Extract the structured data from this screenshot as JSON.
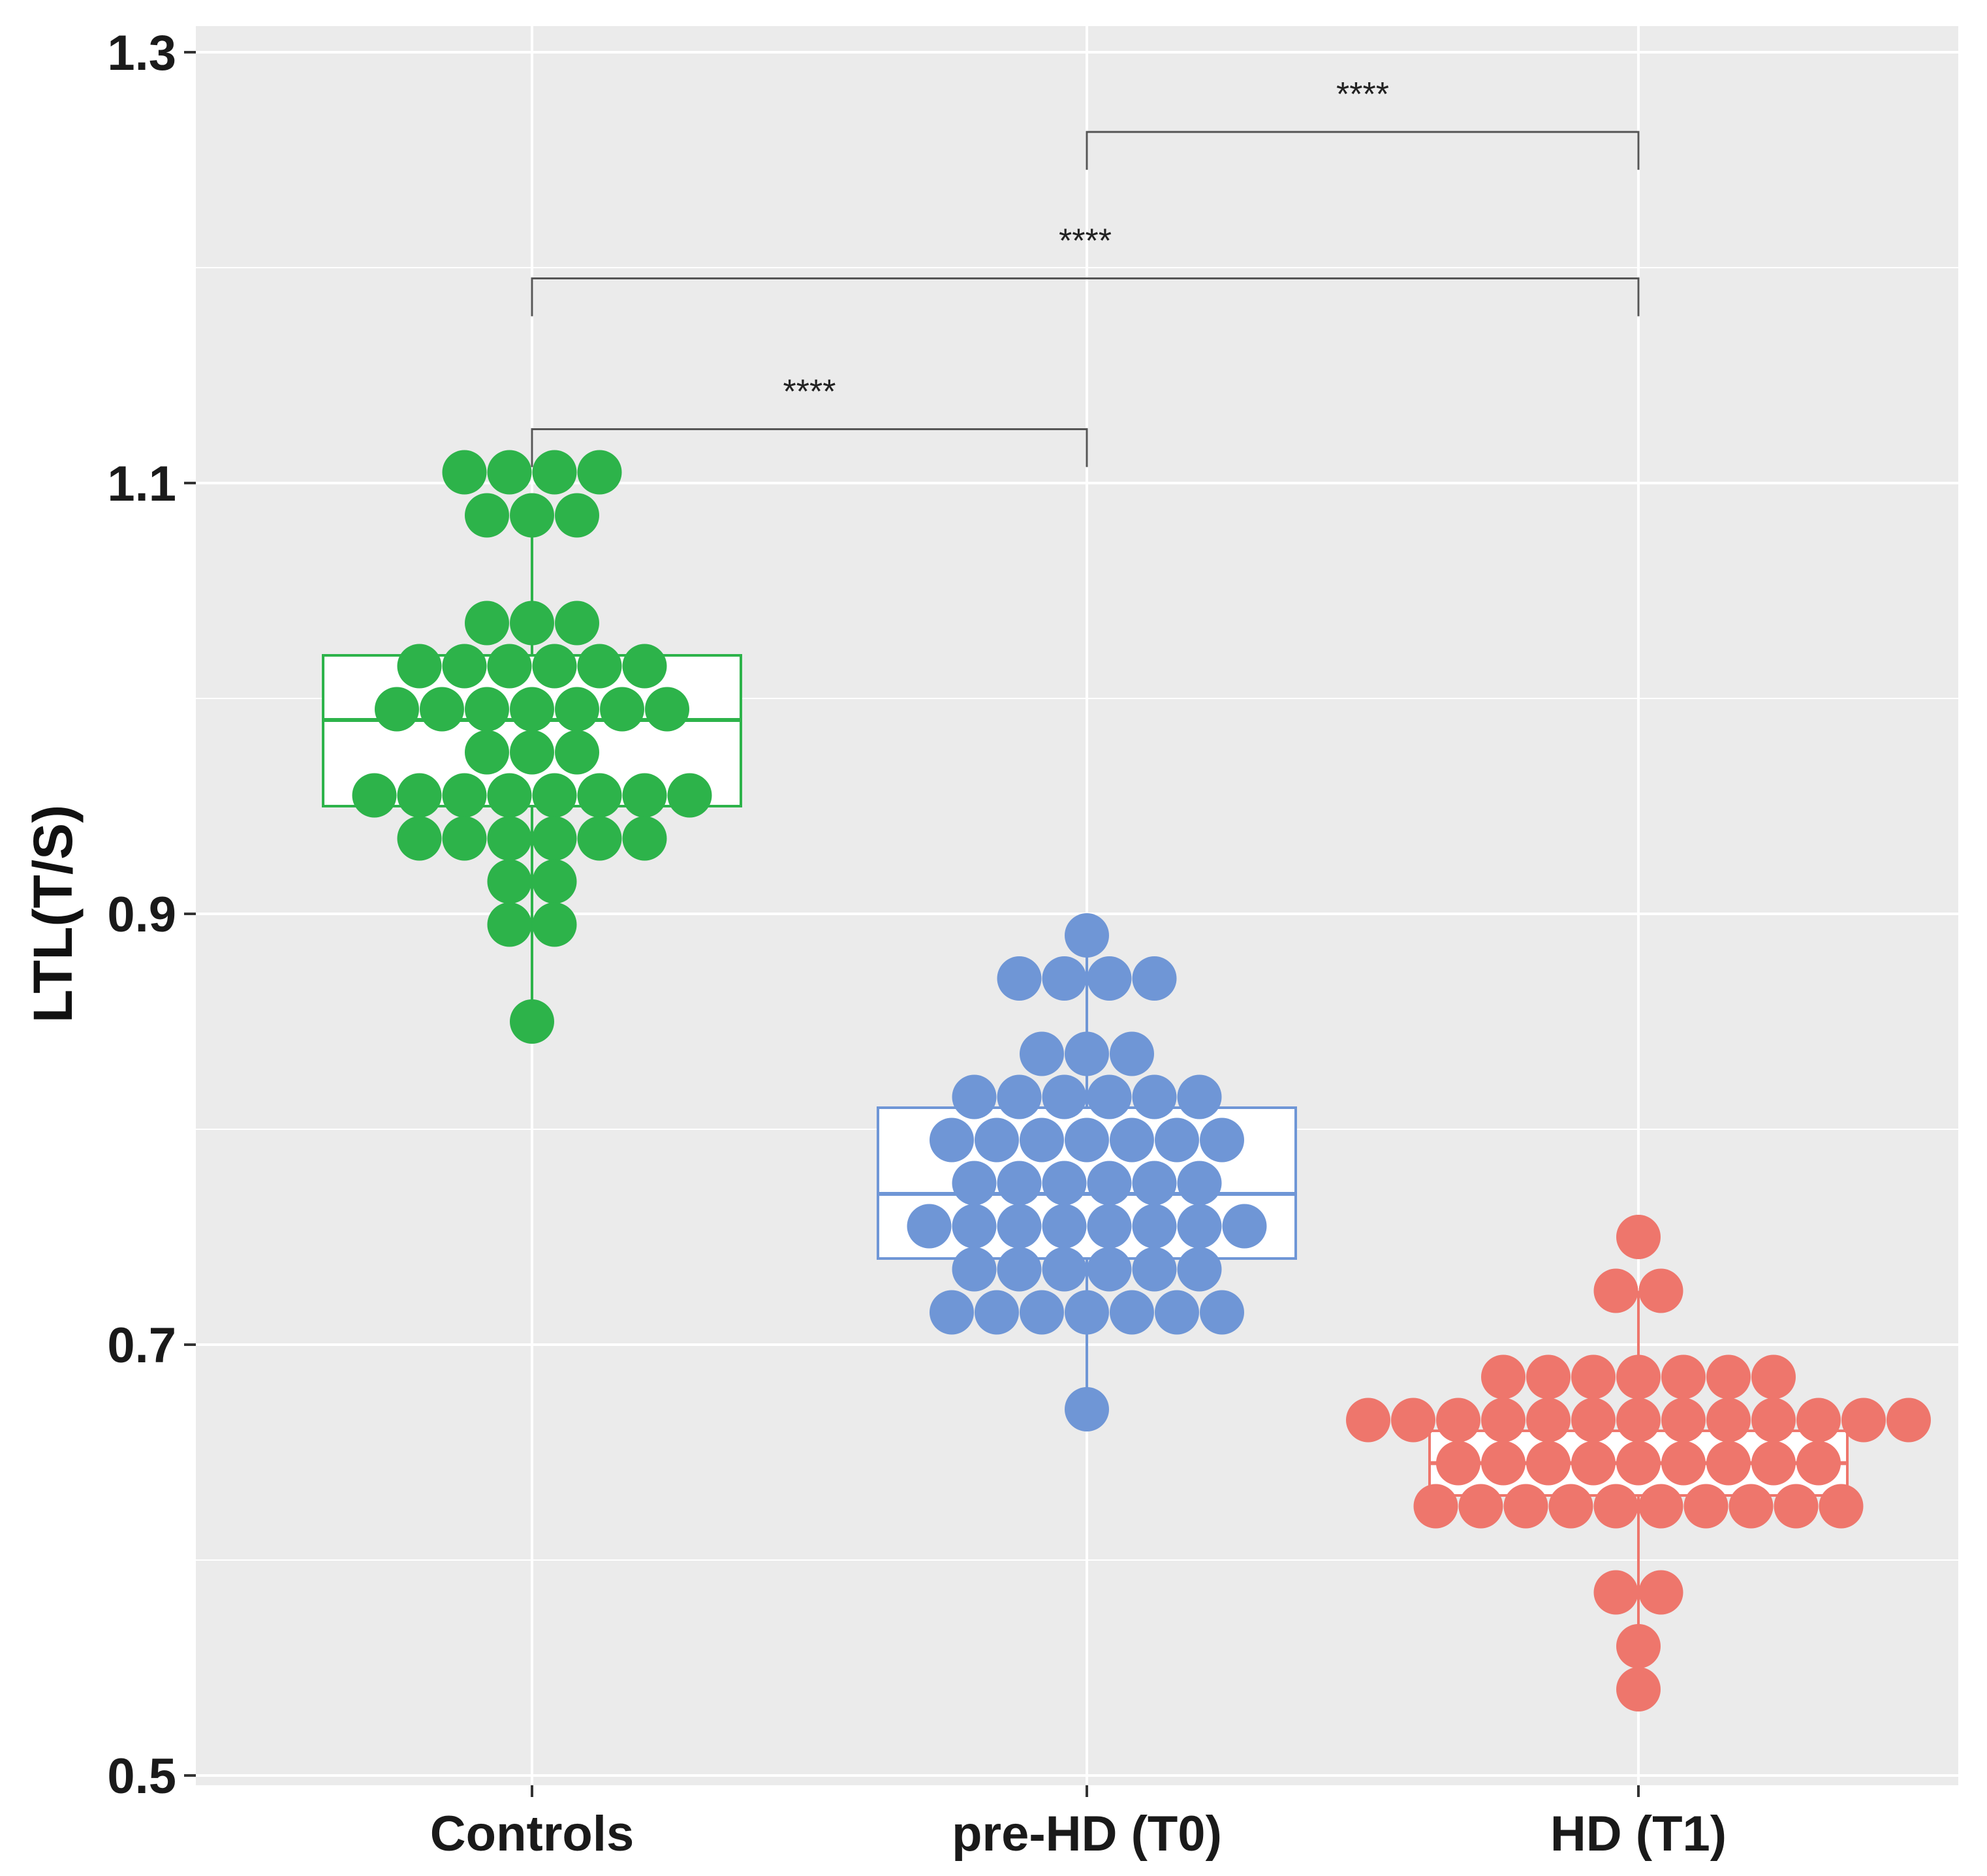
{
  "chart_data": {
    "type": "dotplot-boxplot",
    "title": "",
    "xlabel": "",
    "ylabel": "LTL(T/S)",
    "ylim": [
      0.5,
      1.3
    ],
    "yticks": [
      0.5,
      0.7,
      0.9,
      1.1,
      1.3
    ],
    "ytick_labels": [
      "0.5",
      "0.7",
      "0.9",
      "1.1",
      "1.3"
    ],
    "grid": true,
    "categories": [
      "Controls",
      "pre-HD (T0)",
      "HD (T1)"
    ],
    "series": [
      {
        "name": "Controls",
        "color": "#2db34a",
        "box": {
          "min": 0.85,
          "q1": 0.95,
          "median": 0.99,
          "q3": 1.02,
          "max": 1.085
        },
        "dot_rows": [
          {
            "y": 1.105,
            "count": 4
          },
          {
            "y": 1.085,
            "count": 3
          },
          {
            "y": 1.035,
            "count": 3
          },
          {
            "y": 1.015,
            "count": 6
          },
          {
            "y": 0.995,
            "count": 7
          },
          {
            "y": 0.975,
            "count": 3
          },
          {
            "y": 0.955,
            "count": 8
          },
          {
            "y": 0.935,
            "count": 6
          },
          {
            "y": 0.915,
            "count": 2
          },
          {
            "y": 0.895,
            "count": 2
          },
          {
            "y": 0.85,
            "count": 1
          }
        ]
      },
      {
        "name": "pre-HD (T0)",
        "color": "#6f96d6",
        "box": {
          "min": 0.67,
          "q1": 0.74,
          "median": 0.77,
          "q3": 0.81,
          "max": 0.89
        },
        "dot_rows": [
          {
            "y": 0.89,
            "count": 1
          },
          {
            "y": 0.87,
            "count": 4
          },
          {
            "y": 0.835,
            "count": 3
          },
          {
            "y": 0.815,
            "count": 6
          },
          {
            "y": 0.795,
            "count": 7
          },
          {
            "y": 0.775,
            "count": 6
          },
          {
            "y": 0.755,
            "count": 8
          },
          {
            "y": 0.735,
            "count": 6
          },
          {
            "y": 0.715,
            "count": 7
          },
          {
            "y": 0.67,
            "count": 1
          }
        ]
      },
      {
        "name": "HD (T1)",
        "color": "#ee766c",
        "box": {
          "min": 0.54,
          "q1": 0.63,
          "median": 0.645,
          "q3": 0.66,
          "max": 0.725
        },
        "dot_rows": [
          {
            "y": 0.75,
            "count": 1
          },
          {
            "y": 0.725,
            "count": 2
          },
          {
            "y": 0.685,
            "count": 7
          },
          {
            "y": 0.665,
            "count": 13
          },
          {
            "y": 0.645,
            "count": 9
          },
          {
            "y": 0.625,
            "count": 10
          },
          {
            "y": 0.585,
            "count": 2
          },
          {
            "y": 0.56,
            "count": 1
          },
          {
            "y": 0.54,
            "count": 1
          }
        ]
      }
    ],
    "significance": [
      {
        "from": "Controls",
        "to": "pre-HD (T0)",
        "y": 1.125,
        "label": "****"
      },
      {
        "from": "Controls",
        "to": "HD (T1)",
        "y": 1.195,
        "label": "****"
      },
      {
        "from": "pre-HD (T0)",
        "to": "HD (T1)",
        "y": 1.263,
        "label": "****"
      }
    ]
  },
  "colors": {
    "panel_background": "#ebebeb",
    "grid_line": "#ffffff",
    "bracket": "#555555"
  }
}
